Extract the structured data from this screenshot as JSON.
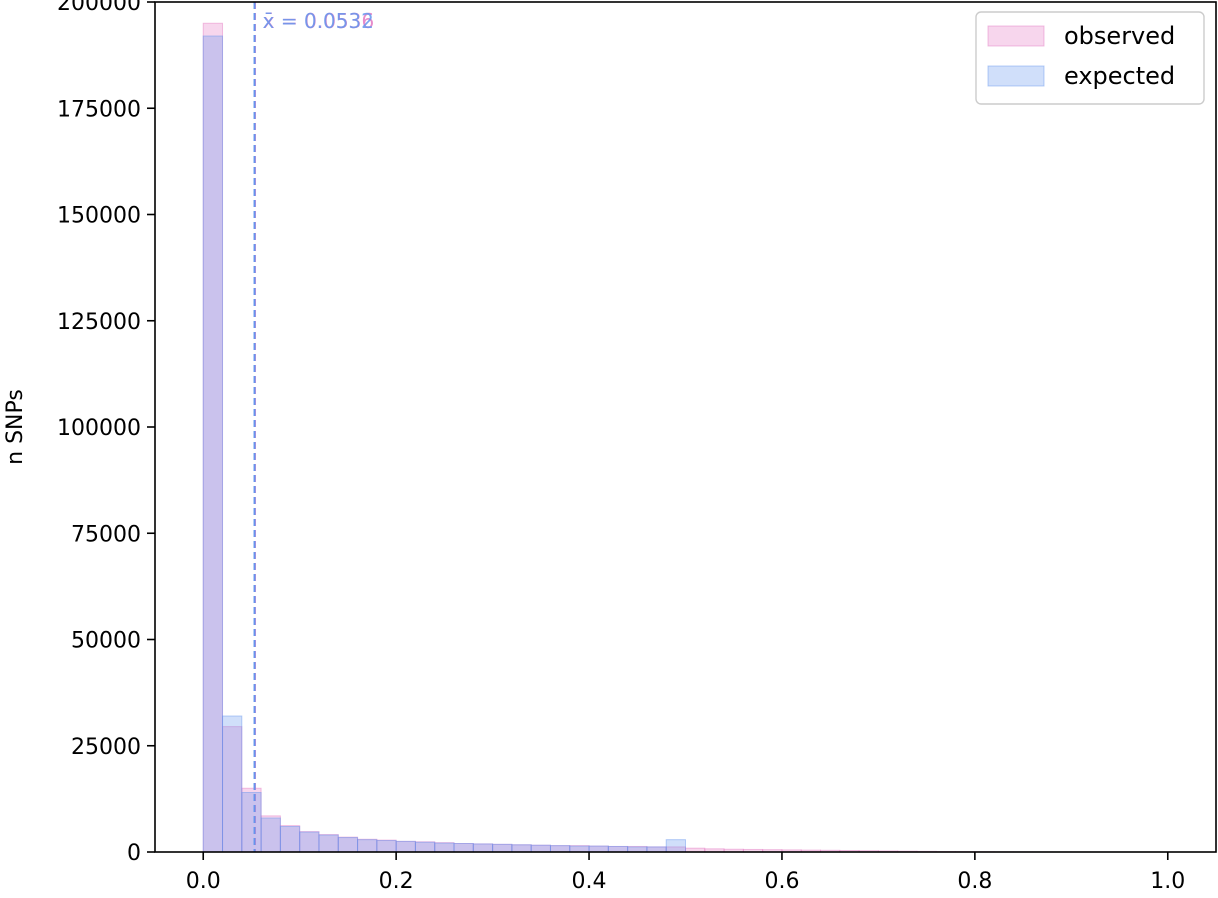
{
  "chart_data": {
    "type": "bar",
    "ylabel": "n SNPs",
    "xlim": [
      -0.05,
      1.05
    ],
    "ylim": [
      0,
      200000
    ],
    "x_ticks": [
      "0.0",
      "0.2",
      "0.4",
      "0.6",
      "0.8",
      "1.0"
    ],
    "y_ticks": [
      "0",
      "25000",
      "50000",
      "75000",
      "100000",
      "125000",
      "150000",
      "175000",
      "200000"
    ],
    "bin_edges_start": 0.0,
    "bin_width": 0.02,
    "grid": false,
    "legend_position": "top-right",
    "series": [
      {
        "name": "observed",
        "color": "#e377c2",
        "mean_label": "x̄ = 0.0536",
        "mean": 0.0536,
        "values": [
          195000,
          29500,
          15000,
          8500,
          6200,
          4800,
          4100,
          3500,
          3000,
          2800,
          2500,
          2400,
          2200,
          2000,
          1900,
          1800,
          1700,
          1600,
          1500,
          1500,
          1400,
          1300,
          1300,
          1200,
          1200,
          900,
          750,
          650,
          600,
          550,
          500,
          450,
          400,
          350,
          300,
          250,
          200,
          150,
          100,
          80,
          60,
          40,
          30,
          20,
          15,
          10,
          5,
          5,
          2,
          1
        ]
      },
      {
        "name": "expected",
        "color": "#6495ed",
        "mean_label": "x̄ = 0.0532",
        "mean": 0.0532,
        "values": [
          192000,
          32000,
          14000,
          8000,
          6000,
          4700,
          4000,
          3400,
          2900,
          2700,
          2500,
          2300,
          2100,
          2000,
          1900,
          1800,
          1700,
          1600,
          1500,
          1400,
          1400,
          1300,
          1200,
          1200,
          2900,
          0,
          0,
          0,
          0,
          0,
          0,
          0,
          0,
          0,
          0,
          0,
          0,
          0,
          0,
          0,
          0,
          0,
          0,
          0,
          0,
          0,
          0,
          0,
          0,
          0
        ]
      }
    ]
  }
}
